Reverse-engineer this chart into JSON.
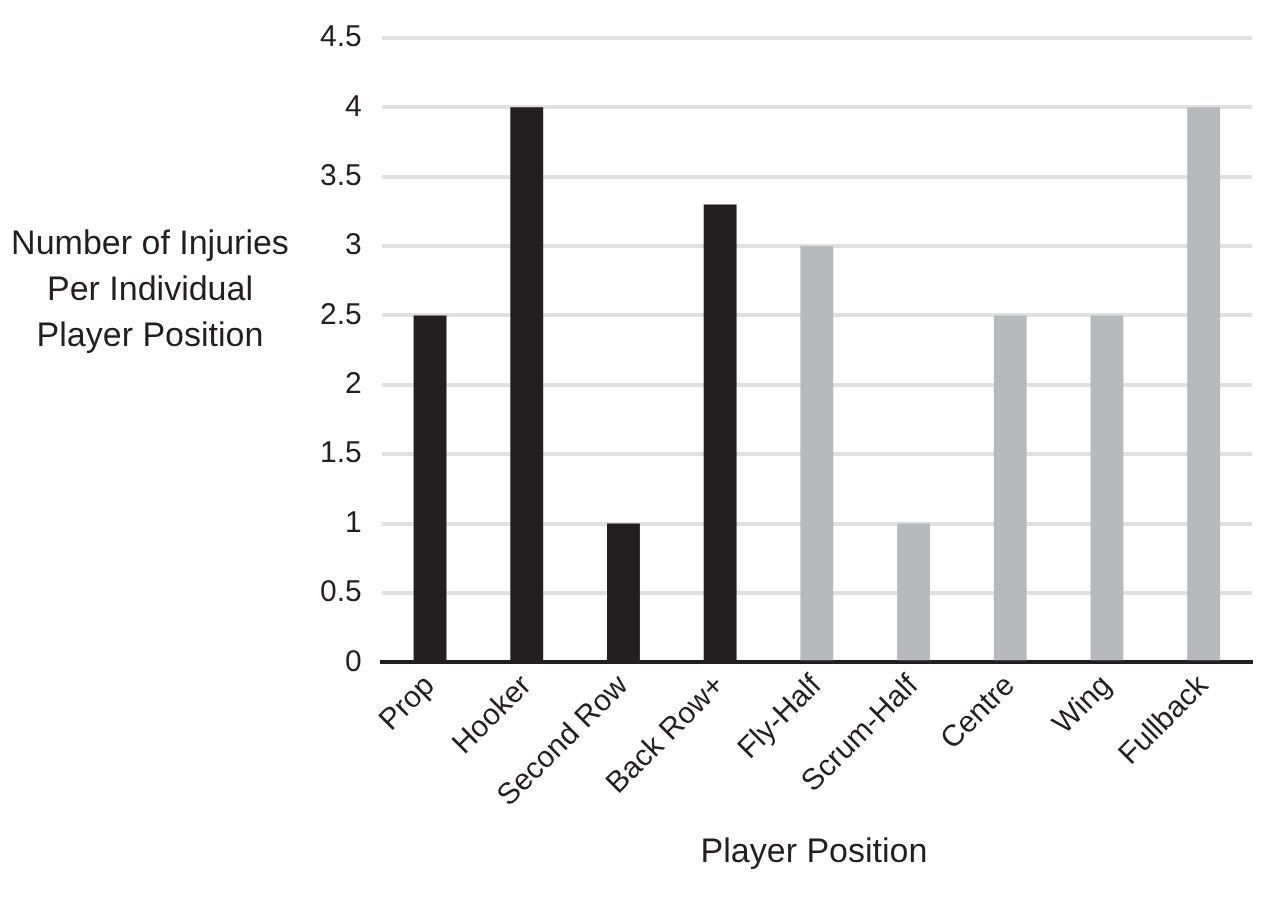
{
  "chart_data": {
    "type": "bar",
    "xlabel": "Player Position",
    "ylabel": "Number of Injuries Per Individual Player Position",
    "categories": [
      "Prop",
      "Hooker",
      "Second Row",
      "Back Row+",
      "Fly-Half",
      "Scrum-Half",
      "Centre",
      "Wing",
      "Fullback"
    ],
    "values": [
      2.5,
      4,
      1,
      3.3,
      3,
      1,
      2.5,
      2.5,
      4
    ],
    "colors": [
      "#231f20",
      "#231f20",
      "#231f20",
      "#231f20",
      "#b8b9bc",
      "#b8b9bc",
      "#b8b9bc",
      "#b8b9bc",
      "#b8b9bc"
    ],
    "ylim": [
      0,
      4.5
    ],
    "yticks": [
      0,
      0.5,
      1,
      1.5,
      2,
      2.5,
      3,
      3.5,
      4,
      4.5
    ],
    "grid": "y",
    "legend": false
  }
}
